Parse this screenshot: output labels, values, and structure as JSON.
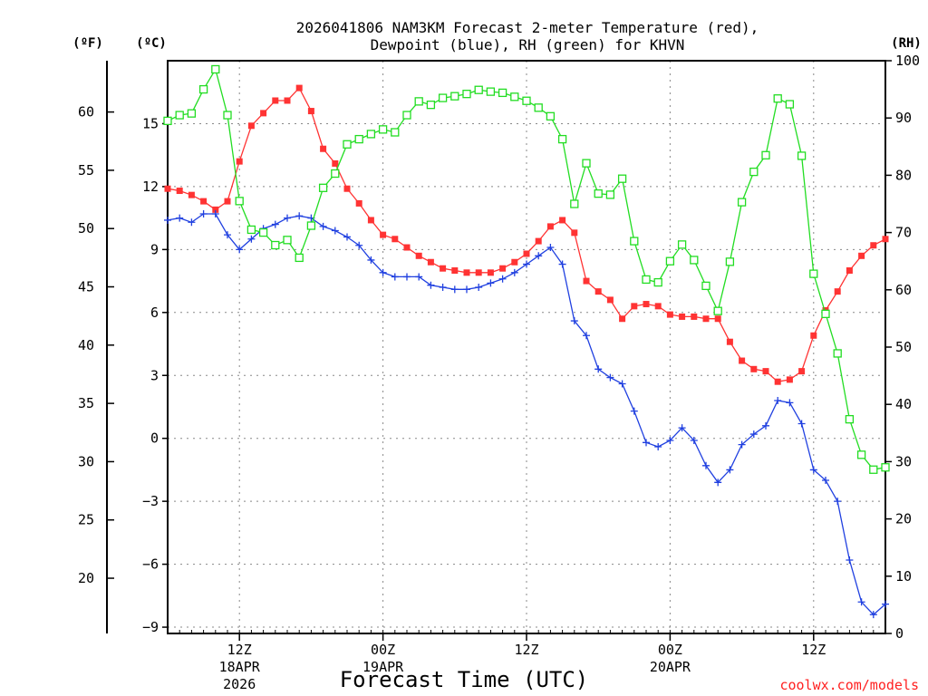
{
  "chart_data": {
    "type": "line",
    "title_line1": "2026041806 NAM3KM Forecast 2-meter Temperature (red),",
    "title_line2": "Dewpoint (blue), RH (green) for KHVN",
    "xlabel": "Forecast Time (UTC)",
    "credit": "coolwx.com/models",
    "units": {
      "fahrenheit": "(ºF)",
      "celsius": "(ºC)",
      "rh": "(RH)"
    },
    "x_range_hours": [
      0,
      60
    ],
    "y_celsius_range": [
      -9.3,
      18
    ],
    "y_rh_range": [
      0,
      100
    ],
    "celsius_ticks": [
      "15",
      "12",
      "9",
      "6",
      "3",
      "0",
      "−3",
      "−6",
      "−9"
    ],
    "celsius_tick_values": [
      15,
      12,
      9,
      6,
      3,
      0,
      -3,
      -6,
      -9
    ],
    "fahrenheit_ticks": [
      "60",
      "55",
      "50",
      "45",
      "40",
      "35",
      "30",
      "25",
      "20"
    ],
    "fahrenheit_tick_values": [
      60,
      55,
      50,
      45,
      40,
      35,
      30,
      25,
      20
    ],
    "rh_ticks": [
      "100",
      "90",
      "80",
      "70",
      "60",
      "50",
      "40",
      "30",
      "20",
      "10",
      "0"
    ],
    "rh_tick_values": [
      100,
      90,
      80,
      70,
      60,
      50,
      40,
      30,
      20,
      10,
      0
    ],
    "x_ticks": [
      {
        "hour": 6,
        "line1": "12Z",
        "line2": "18APR",
        "line3": "2026"
      },
      {
        "hour": 18,
        "line1": "00Z",
        "line2": "19APR",
        "line3": ""
      },
      {
        "hour": 30,
        "line1": "12Z",
        "line2": "",
        "line3": ""
      },
      {
        "hour": 42,
        "line1": "00Z",
        "line2": "20APR",
        "line3": ""
      },
      {
        "hour": 54,
        "line1": "12Z",
        "line2": "",
        "line3": ""
      }
    ],
    "colors": {
      "temperature": "#ff3333",
      "dewpoint": "#2040e0",
      "rh": "#22dd22"
    },
    "series": [
      {
        "name": "Temperature (°C)",
        "hours": [
          0,
          1,
          2,
          3,
          4,
          5,
          6,
          7,
          8,
          9,
          10,
          11,
          12,
          13,
          14,
          15,
          16,
          17,
          18,
          19,
          20,
          21,
          22,
          23,
          24,
          25,
          26,
          27,
          28,
          29,
          30,
          31,
          32,
          33,
          34,
          35,
          36,
          37,
          38,
          39,
          40,
          41,
          42,
          43,
          44,
          45,
          46,
          47,
          48,
          49,
          50,
          51,
          52,
          53,
          54,
          55,
          56,
          57,
          58,
          59,
          60
        ],
        "values": [
          11.9,
          11.8,
          11.6,
          11.3,
          10.9,
          11.3,
          13.2,
          14.9,
          15.5,
          16.1,
          16.1,
          16.7,
          15.6,
          13.8,
          13.1,
          11.9,
          11.2,
          10.4,
          9.7,
          9.5,
          9.1,
          8.7,
          8.4,
          8.1,
          8.0,
          7.9,
          7.9,
          7.9,
          8.1,
          8.4,
          8.8,
          9.4,
          10.1,
          10.4,
          9.8,
          7.5,
          7.0,
          6.6,
          5.7,
          6.3,
          6.4,
          6.3,
          5.9,
          5.8,
          5.8,
          5.7,
          5.7,
          4.6,
          3.7,
          3.3,
          3.2,
          2.7,
          2.8,
          3.2,
          4.9,
          6.1,
          7.0,
          8.0,
          8.7,
          9.2,
          9.5
        ]
      },
      {
        "name": "Dewpoint (°C)",
        "hours": [
          0,
          1,
          2,
          3,
          4,
          5,
          6,
          7,
          8,
          9,
          10,
          11,
          12,
          13,
          14,
          15,
          16,
          17,
          18,
          19,
          20,
          21,
          22,
          23,
          24,
          25,
          26,
          27,
          28,
          29,
          30,
          31,
          32,
          33,
          34,
          35,
          36,
          37,
          38,
          39,
          40,
          41,
          42,
          43,
          44,
          45,
          46,
          47,
          48,
          49,
          50,
          51,
          52,
          53,
          54,
          55,
          56,
          57,
          58,
          59,
          60
        ],
        "values": [
          10.4,
          10.5,
          10.3,
          10.7,
          10.7,
          9.7,
          9.0,
          9.5,
          10.0,
          10.2,
          10.5,
          10.6,
          10.5,
          10.1,
          9.9,
          9.6,
          9.2,
          8.5,
          7.9,
          7.7,
          7.7,
          7.7,
          7.3,
          7.2,
          7.1,
          7.1,
          7.2,
          7.4,
          7.6,
          7.9,
          8.3,
          8.7,
          9.1,
          8.3,
          5.6,
          4.9,
          3.3,
          2.9,
          2.6,
          1.3,
          -0.2,
          -0.4,
          -0.1,
          0.5,
          -0.1,
          -1.3,
          -2.1,
          -1.5,
          -0.3,
          0.2,
          0.6,
          1.8,
          1.7,
          0.7,
          -1.5,
          -2.0,
          -3.0,
          -5.8,
          -7.8,
          -8.4,
          -7.9
        ]
      },
      {
        "name": "RH (%)",
        "hours": [
          0,
          1,
          2,
          3,
          4,
          5,
          6,
          7,
          8,
          9,
          10,
          11,
          12,
          13,
          14,
          15,
          16,
          17,
          18,
          19,
          20,
          21,
          22,
          23,
          24,
          25,
          26,
          27,
          28,
          29,
          30,
          31,
          32,
          33,
          34,
          35,
          36,
          37,
          38,
          39,
          40,
          41,
          42,
          43,
          44,
          45,
          46,
          47,
          48,
          49,
          50,
          51,
          52,
          53,
          54,
          55,
          56,
          57,
          58,
          59,
          60
        ],
        "values": [
          89.5,
          90.5,
          90.8,
          95,
          98.5,
          90.5,
          75.5,
          70.5,
          70,
          67.8,
          68.7,
          65.6,
          71.2,
          77.8,
          80.3,
          85.4,
          86.3,
          87.2,
          88,
          87.5,
          90.5,
          92.9,
          92.3,
          93.5,
          93.8,
          94.2,
          94.9,
          94.6,
          94.4,
          93.7,
          93,
          91.8,
          90.3,
          86.3,
          75,
          82.1,
          76.8,
          76.6,
          79.4,
          68.5,
          61.8,
          61.3,
          65,
          67.9,
          65.2,
          60.7,
          56.3,
          64.9,
          75.3,
          80.6,
          83.5,
          93.4,
          92.4,
          83.4,
          62.8,
          55.8,
          48.9,
          37.4,
          31.2,
          28.6,
          29
        ]
      }
    ]
  }
}
